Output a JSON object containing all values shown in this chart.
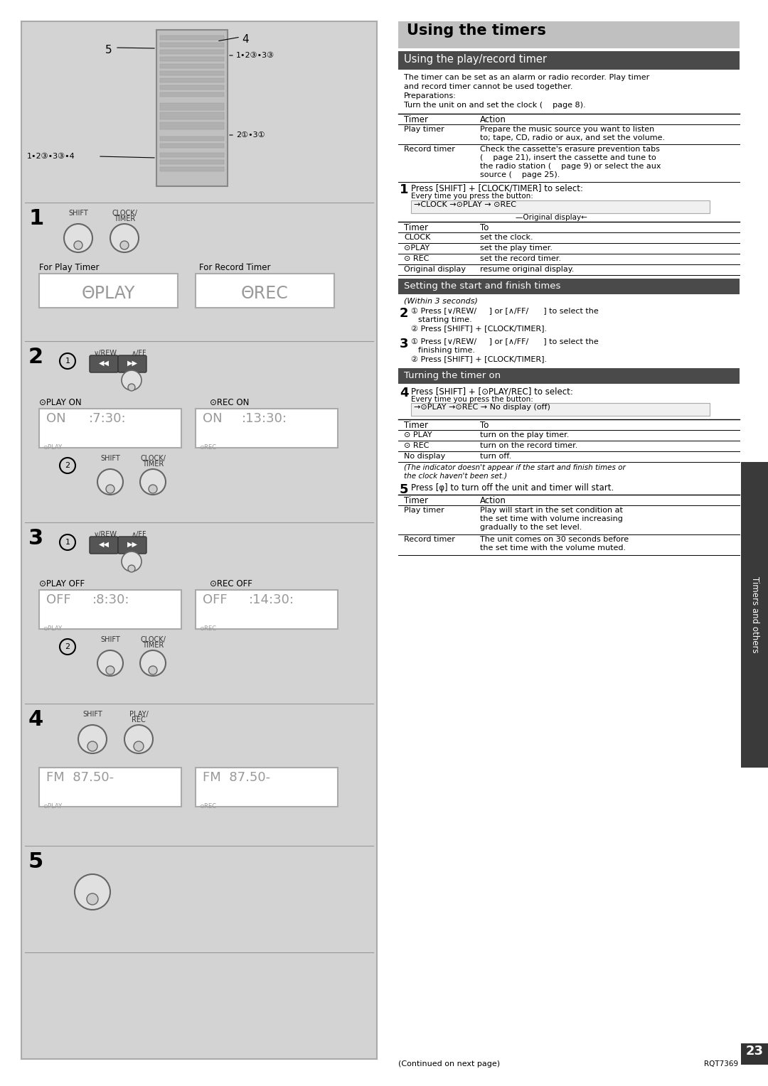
{
  "page_bg": "#ffffff",
  "left_panel_bg": "#d3d3d3",
  "left_panel_inner_bg": "#d3d3d3",
  "remote_bg": "#c8c8c8",
  "title_bar_bg": "#c0c0c0",
  "section_header_bg": "#4a4a4a",
  "section_header_text": "#ffffff",
  "main_title": "Using the timers",
  "sub_title": "Using the play/record timer",
  "body_text_color": "#000000",
  "display_bg": "#ffffff",
  "display_border": "#999999",
  "display_text_color": "#777777",
  "right_margin_bg": "#3a3a3a",
  "right_margin_text": "Timers and others",
  "page_number": "23",
  "footer_text": "(Continued on next page)",
  "footer_code": "RQT7369"
}
